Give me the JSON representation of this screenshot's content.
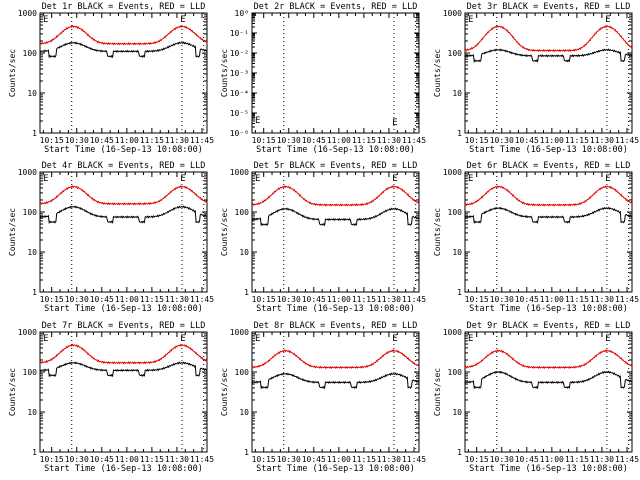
{
  "chart_data": [
    {
      "type": "line",
      "title": "Det 1r BLACK = Events, RED = LLD",
      "xlabel": "Start Time (16-Sep-13 10:08:00)",
      "ylabel": "Counts/sec",
      "yscale": "log",
      "ylim": [
        1,
        1000
      ],
      "yticks": [
        "1",
        "10",
        "100",
        "1000"
      ],
      "xticks": [
        "10:15",
        "10:30",
        "10:45",
        "11:00",
        "11:15",
        "11:30",
        "11:45"
      ],
      "xlim_minutes": [
        8,
        108
      ],
      "markers": [
        "E",
        "E"
      ],
      "series": [
        {
          "color": "#000000",
          "baseline": 110,
          "peak": 180,
          "gaps": [
            [
              13,
              18
            ],
            [
              48,
              52
            ],
            [
              67,
              71
            ],
            [
              101,
              104
            ]
          ]
        },
        {
          "color": "#e00000",
          "baseline": 170,
          "peak": 460,
          "gaps": []
        }
      ]
    },
    {
      "type": "line",
      "title": "Det 2r BLACK = Events, RED = LLD",
      "xlabel": "Start Time (16-Sep-13 10:08:00)",
      "ylabel": "Counts/sec",
      "yscale": "log",
      "ylim": [
        1e-06,
        1
      ],
      "yticks": [
        "10⁻⁶",
        "10⁻⁵",
        "10⁻⁴",
        "10⁻³",
        "10⁻²",
        "10⁻¹",
        "10⁰"
      ],
      "xticks": [
        "10:15",
        "10:30",
        "10:45",
        "11:00",
        "11:15",
        "11:30",
        "11:45"
      ],
      "xlim_minutes": [
        8,
        108
      ],
      "markers": [
        "E",
        "E"
      ],
      "series": []
    },
    {
      "type": "line",
      "title": "Det 3r BLACK = Events, RED = LLD",
      "xlabel": "Start Time (16-Sep-13 10:08:00)",
      "ylabel": "Counts/sec",
      "yscale": "log",
      "ylim": [
        1,
        1000
      ],
      "yticks": [
        "1",
        "10",
        "100",
        "1000"
      ],
      "xticks": [
        "10:15",
        "10:30",
        "10:45",
        "11:00",
        "11:15",
        "11:30",
        "11:45"
      ],
      "xlim_minutes": [
        8,
        108
      ],
      "markers": [
        "E",
        "E"
      ],
      "series": [
        {
          "color": "#000000",
          "baseline": 85,
          "peak": 120,
          "gaps": [
            [
              13,
              18
            ],
            [
              48,
              52
            ],
            [
              67,
              71
            ],
            [
              101,
              104
            ]
          ]
        },
        {
          "color": "#e00000",
          "baseline": 115,
          "peak": 460,
          "gaps": []
        }
      ]
    },
    {
      "type": "line",
      "title": "Det 4r BLACK = Events, RED = LLD",
      "xlabel": "Start Time (16-Sep-13 10:08:00)",
      "ylabel": "Counts/sec",
      "yscale": "log",
      "ylim": [
        1,
        1000
      ],
      "yticks": [
        "1",
        "10",
        "100",
        "1000"
      ],
      "xticks": [
        "10:15",
        "10:30",
        "10:45",
        "11:00",
        "11:15",
        "11:30",
        "11:45"
      ],
      "xlim_minutes": [
        8,
        108
      ],
      "markers": [
        "E",
        "E"
      ],
      "series": [
        {
          "color": "#000000",
          "baseline": 75,
          "peak": 135,
          "gaps": [
            [
              13,
              18
            ],
            [
              48,
              52
            ],
            [
              67,
              71
            ],
            [
              101,
              104
            ]
          ]
        },
        {
          "color": "#e00000",
          "baseline": 160,
          "peak": 430,
          "gaps": []
        }
      ]
    },
    {
      "type": "line",
      "title": "Det 5r BLACK = Events, RED = LLD",
      "xlabel": "Start Time (16-Sep-13 10:08:00)",
      "ylabel": "Counts/sec",
      "yscale": "log",
      "ylim": [
        1,
        1000
      ],
      "yticks": [
        "1",
        "10",
        "100",
        "1000"
      ],
      "xticks": [
        "10:15",
        "10:30",
        "10:45",
        "11:00",
        "11:15",
        "11:30",
        "11:45"
      ],
      "xlim_minutes": [
        8,
        108
      ],
      "markers": [
        "E",
        "E"
      ],
      "series": [
        {
          "color": "#000000",
          "baseline": 65,
          "peak": 120,
          "gaps": [
            [
              13,
              18
            ],
            [
              48,
              52
            ],
            [
              67,
              71
            ],
            [
              101,
              104
            ]
          ]
        },
        {
          "color": "#e00000",
          "baseline": 150,
          "peak": 430,
          "gaps": []
        }
      ]
    },
    {
      "type": "line",
      "title": "Det 6r BLACK = Events, RED = LLD",
      "xlabel": "Start Time (16-Sep-13 10:08:00)",
      "ylabel": "Counts/sec",
      "yscale": "log",
      "ylim": [
        1,
        1000
      ],
      "yticks": [
        "1",
        "10",
        "100",
        "1000"
      ],
      "xticks": [
        "10:15",
        "10:30",
        "10:45",
        "11:00",
        "11:15",
        "11:30",
        "11:45"
      ],
      "xlim_minutes": [
        8,
        108
      ],
      "markers": [
        "E",
        "E"
      ],
      "series": [
        {
          "color": "#000000",
          "baseline": 75,
          "peak": 125,
          "gaps": [
            [
              13,
              18
            ],
            [
              48,
              52
            ],
            [
              67,
              71
            ],
            [
              101,
              104
            ]
          ]
        },
        {
          "color": "#e00000",
          "baseline": 150,
          "peak": 430,
          "gaps": []
        }
      ]
    },
    {
      "type": "line",
      "title": "Det 7r BLACK = Events, RED = LLD",
      "xlabel": "Start Time (16-Sep-13 10:08:00)",
      "ylabel": "Counts/sec",
      "yscale": "log",
      "ylim": [
        1,
        1000
      ],
      "yticks": [
        "1",
        "10",
        "100",
        "1000"
      ],
      "xticks": [
        "10:15",
        "10:30",
        "10:45",
        "11:00",
        "11:15",
        "11:30",
        "11:45"
      ],
      "xlim_minutes": [
        8,
        108
      ],
      "markers": [
        "E",
        "E"
      ],
      "series": [
        {
          "color": "#000000",
          "baseline": 110,
          "peak": 170,
          "gaps": [
            [
              13,
              18
            ],
            [
              48,
              52
            ],
            [
              67,
              71
            ],
            [
              101,
              104
            ]
          ]
        },
        {
          "color": "#e00000",
          "baseline": 170,
          "peak": 470,
          "gaps": []
        }
      ]
    },
    {
      "type": "line",
      "title": "Det 8r BLACK = Events, RED = LLD",
      "xlabel": "Start Time (16-Sep-13 10:08:00)",
      "ylabel": "Counts/sec",
      "yscale": "log",
      "ylim": [
        1,
        1000
      ],
      "yticks": [
        "1",
        "10",
        "100",
        "1000"
      ],
      "xticks": [
        "10:15",
        "10:30",
        "10:45",
        "11:00",
        "11:15",
        "11:30",
        "11:45"
      ],
      "xlim_minutes": [
        8,
        108
      ],
      "markers": [
        "E",
        "E"
      ],
      "series": [
        {
          "color": "#000000",
          "baseline": 55,
          "peak": 90,
          "gaps": [
            [
              13,
              18
            ],
            [
              48,
              52
            ],
            [
              67,
              71
            ],
            [
              101,
              104
            ]
          ]
        },
        {
          "color": "#e00000",
          "baseline": 130,
          "peak": 340,
          "gaps": []
        }
      ]
    },
    {
      "type": "line",
      "title": "Det 9r BLACK = Events, RED = LLD",
      "xlabel": "Start Time (16-Sep-13 10:08:00)",
      "ylabel": "Counts/sec",
      "yscale": "log",
      "ylim": [
        1,
        1000
      ],
      "yticks": [
        "1",
        "10",
        "100",
        "1000"
      ],
      "xticks": [
        "10:15",
        "10:30",
        "10:45",
        "11:00",
        "11:15",
        "11:30",
        "11:45"
      ],
      "xlim_minutes": [
        8,
        108
      ],
      "markers": [
        "E",
        "E"
      ],
      "series": [
        {
          "color": "#000000",
          "baseline": 55,
          "peak": 100,
          "gaps": [
            [
              13,
              18
            ],
            [
              48,
              52
            ],
            [
              67,
              71
            ],
            [
              101,
              104
            ]
          ]
        },
        {
          "color": "#e00000",
          "baseline": 130,
          "peak": 340,
          "gaps": []
        }
      ]
    }
  ]
}
